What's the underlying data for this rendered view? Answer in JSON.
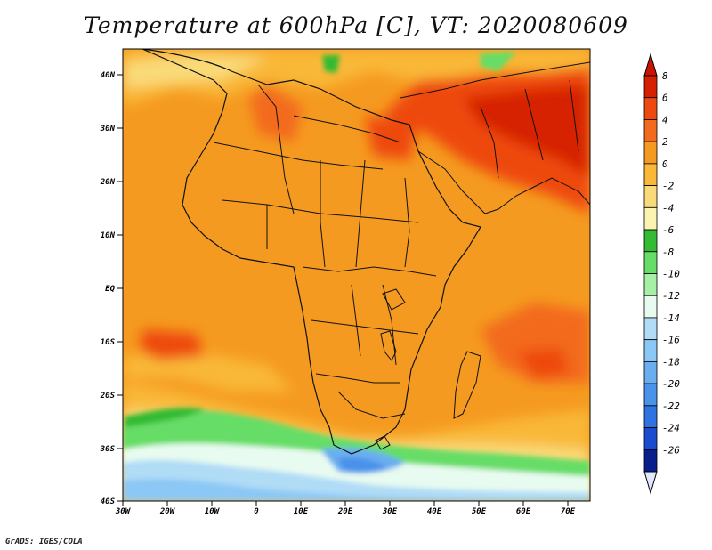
{
  "map": {
    "title": "Temperature at 600hPa [C], VT: 2020080609",
    "credit": "GrADS: IGES/COLA",
    "lon_ticks": [
      "30W",
      "20W",
      "10W",
      "0",
      "10E",
      "20E",
      "30E",
      "40E",
      "50E",
      "60E",
      "70E"
    ],
    "lat_ticks": [
      "40N",
      "30N",
      "20N",
      "10N",
      "EQ",
      "10S",
      "20S",
      "30S",
      "40S"
    ]
  },
  "colorbar": {
    "labels": [
      "8",
      "6",
      "4",
      "2",
      "0",
      "-2",
      "-4",
      "-6",
      "-8",
      "-10",
      "-12",
      "-14",
      "-16",
      "-18",
      "-20",
      "-22",
      "-24",
      "-26"
    ],
    "colors": [
      "#d62000",
      "#ee4a10",
      "#f36a1c",
      "#f59a20",
      "#f9b838",
      "#f9da78",
      "#fbf3b0",
      "#33bb33",
      "#66dd66",
      "#a6f0a6",
      "#e8fbf0",
      "#b0dcf6",
      "#8cc8f5",
      "#6aaef0",
      "#4a92ea",
      "#2f72e2",
      "#1a4cd0",
      "#0a1e8c"
    ],
    "extend_top": "#c81400",
    "extend_bottom": "#e0e8ff"
  }
}
